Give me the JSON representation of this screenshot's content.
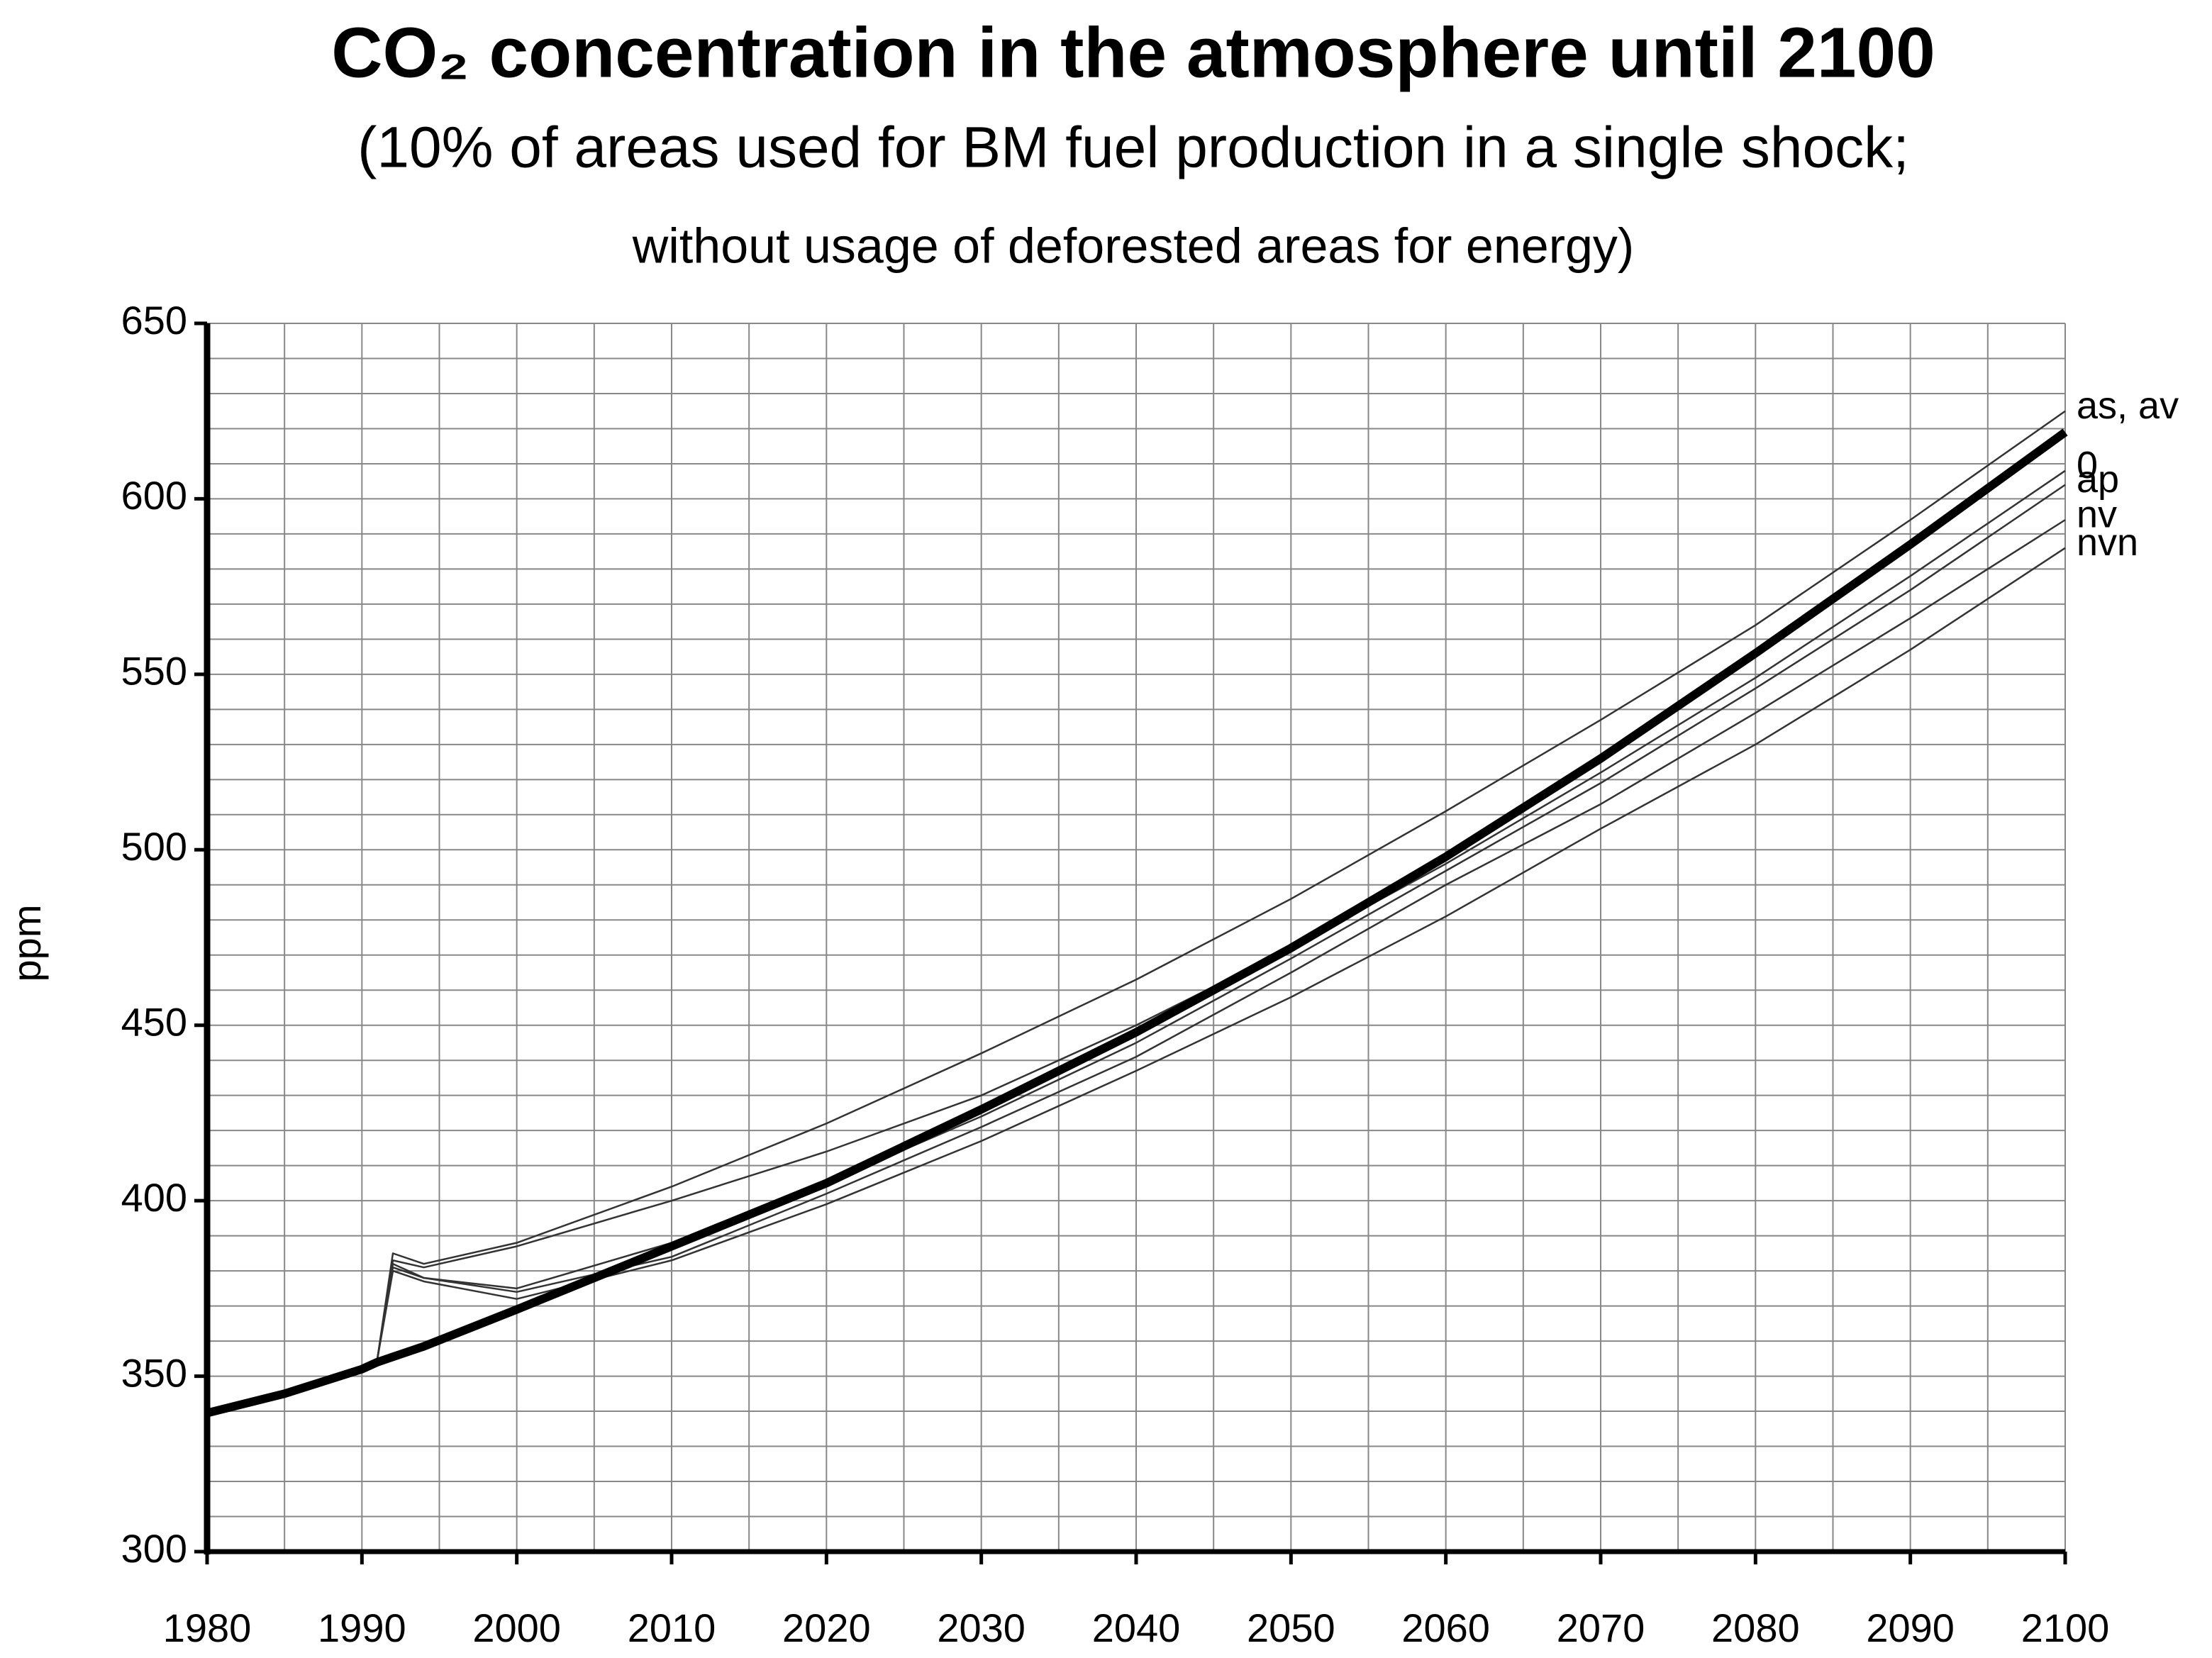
{
  "chart_data": {
    "type": "line",
    "title": "CO₂ concentration in the atmosphere until 2100",
    "subtitle": [
      "(10% of areas used for BM fuel production in a single shock;",
      "without usage of deforested areas for energy)"
    ],
    "y_label": "ppm",
    "x": [
      1980,
      1985,
      1990,
      1991,
      1992,
      1994,
      2000,
      2010,
      2020,
      2030,
      2040,
      2050,
      2060,
      2070,
      2080,
      2090,
      2100
    ],
    "series": [
      {
        "color": "#000000",
        "values": [
          339.5,
          345,
          352,
          354,
          355.5,
          358.5,
          369,
          387,
          405,
          426,
          448,
          472,
          498,
          526,
          556,
          587,
          619
        ]
      },
      {
        "name": "as, av",
        "color": "#333333",
        "values": [
          null,
          null,
          null,
          355,
          385,
          382,
          388,
          404,
          422,
          442,
          463,
          486,
          511,
          537,
          564,
          594,
          625
        ]
      },
      {
        "name": "0",
        "color": "#333333",
        "values": [
          null,
          null,
          null,
          355,
          383,
          381,
          387,
          400,
          414,
          430,
          450,
          472,
          496,
          522,
          549,
          578,
          608
        ]
      },
      {
        "name": "ap",
        "color": "#333333",
        "values": [
          null,
          null,
          null,
          355,
          382,
          378,
          375,
          388,
          405,
          424,
          445,
          469,
          494,
          519,
          546,
          574,
          604
        ]
      },
      {
        "name": "nv",
        "color": "#333333",
        "values": [
          null,
          null,
          null,
          355,
          381,
          378,
          374,
          384,
          402,
          421,
          441,
          465,
          490,
          513,
          539,
          566,
          594
        ]
      },
      {
        "name": "nvn",
        "color": "#333333",
        "values": [
          null,
          null,
          null,
          355,
          380,
          377,
          372,
          383,
          399,
          417,
          437,
          458,
          481,
          506,
          530,
          557,
          586
        ]
      }
    ],
    "xlim": [
      1980,
      2100
    ],
    "xticks": [
      1980,
      1990,
      2000,
      2010,
      2020,
      2030,
      2040,
      2050,
      2060,
      2070,
      2080,
      2090,
      2100
    ],
    "ylim": [
      300,
      650
    ],
    "yticks": [
      300,
      350,
      400,
      450,
      500,
      550,
      600,
      650
    ],
    "grid": true
  }
}
